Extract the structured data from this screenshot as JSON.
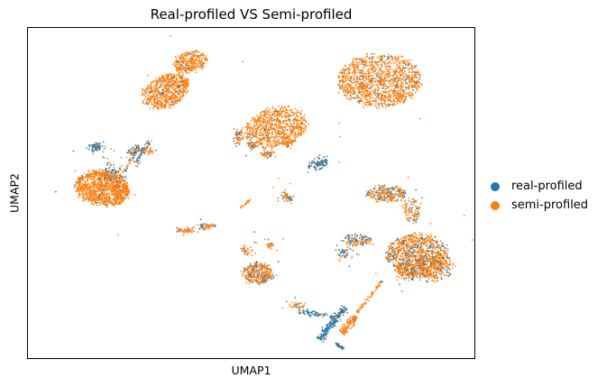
{
  "chart_data": {
    "type": "scatter",
    "title": "Real-profiled VS Semi-profiled",
    "xlabel": "UMAP1",
    "ylabel": "UMAP2",
    "x_ticks": [],
    "y_ticks": [],
    "grid": false,
    "legend_position": "right, outside plot",
    "series": [
      {
        "name": "real-profiled",
        "color": "#1f77b4"
      },
      {
        "name": "semi-profiled",
        "color": "#ff7f0e"
      }
    ],
    "clusters": [
      {
        "real_fraction": 0.03
      },
      {
        "real_fraction": 0.08
      },
      {
        "real_fraction": 0.06
      },
      {
        "real_fraction": 0.08
      },
      {
        "real_fraction": 0.05
      },
      {
        "real_fraction": 0.85
      },
      {
        "real_fraction": 0.55
      },
      {
        "real_fraction": 0.6
      },
      {
        "real_fraction": 0.3
      },
      {
        "real_fraction": 0.3
      },
      {
        "real_fraction": 0.5
      },
      {
        "real_fraction": 0.7
      },
      {
        "real_fraction": 0.2
      },
      {
        "real_fraction": 0.25
      },
      {
        "real_fraction": 0.25
      },
      {
        "real_fraction": 0.2
      },
      {
        "real_fraction": 0.2
      },
      {
        "real_fraction": 0.25
      },
      {
        "real_fraction": 0.3
      },
      {
        "real_fraction": 0.15
      },
      {
        "real_fraction": 0.25
      },
      {
        "real_fraction": 0.3
      },
      {
        "real_fraction": 0.25
      },
      {
        "real_fraction": 0.85
      },
      {
        "real_fraction": 0.05
      },
      {
        "real_fraction": 0.2
      },
      {
        "real_fraction": 0.6
      },
      {
        "real_fraction": 0.15
      },
      {
        "real_fraction": 0.1
      }
    ]
  }
}
